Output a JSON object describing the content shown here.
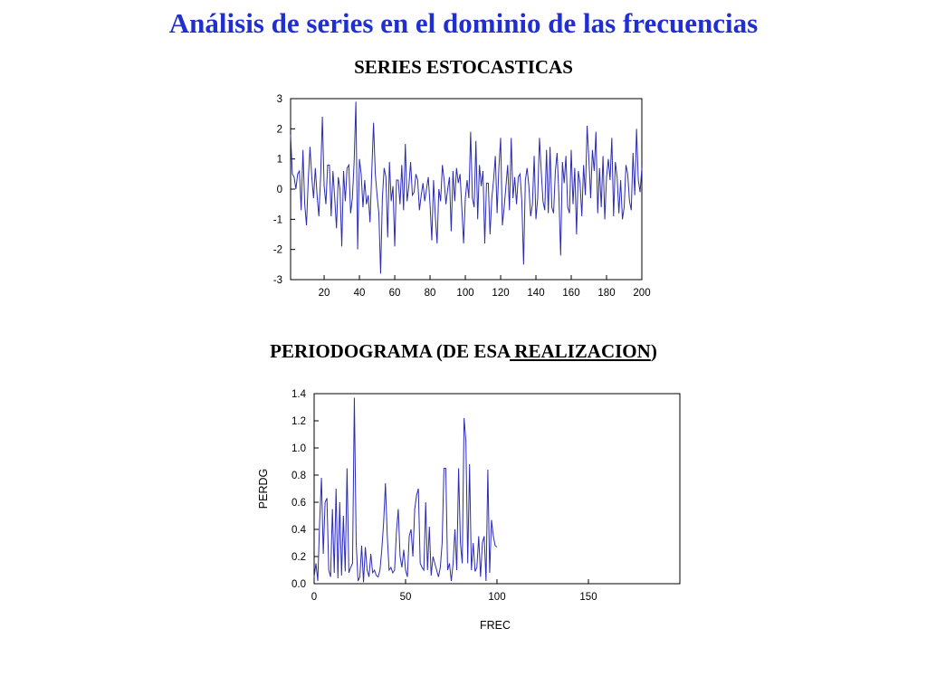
{
  "header": {
    "title": "Análisis de series en el dominio de las frecuencias",
    "series_title": "SERIES ESTOCASTICAS",
    "periodogram_title_prefix": "PERIODOGRAMA (DE ESA",
    "periodogram_title_underlined": " REALIZACION",
    "periodogram_title_suffix": ")"
  },
  "colors": {
    "title": "#1f2fd0",
    "series_line": "#2b2bb5",
    "axes": "#000000"
  },
  "chart_data": [
    {
      "type": "line",
      "xlim": [
        1,
        200
      ],
      "ylim": [
        -3,
        3
      ],
      "x_ticks": [
        20,
        40,
        60,
        80,
        100,
        120,
        140,
        160,
        180,
        200
      ],
      "y_ticks": [
        -3,
        -2,
        -1,
        0,
        1,
        2,
        3
      ],
      "xlabel": "",
      "ylabel": "",
      "grid": false,
      "values": [
        1.8,
        0.5,
        0.4,
        0.0,
        0.5,
        0.6,
        -0.7,
        1.3,
        -0.5,
        -1.2,
        0.3,
        1.4,
        0.4,
        -0.3,
        0.7,
        -0.2,
        -0.9,
        0.4,
        2.4,
        0.1,
        -0.5,
        0.8,
        0.8,
        -0.9,
        0.6,
        -0.3,
        -1.3,
        0.4,
        0.0,
        -1.9,
        0.6,
        -0.4,
        0.7,
        0.8,
        -0.8,
        -0.3,
        0.9,
        2.9,
        -2.0,
        1.0,
        0.5,
        -0.6,
        0.3,
        -0.5,
        -0.2,
        -1.1,
        0.6,
        2.2,
        0.5,
        -0.2,
        -0.8,
        -2.8,
        -0.3,
        0.7,
        0.4,
        -1.6,
        0.9,
        -0.4,
        0.1,
        -1.9,
        0.3,
        0.3,
        -0.5,
        0.8,
        -0.7,
        1.5,
        -0.4,
        0.1,
        0.9,
        -0.2,
        -0.1,
        0.5,
        0.3,
        -0.7,
        -0.2,
        0.2,
        -0.4,
        0.0,
        0.4,
        -0.5,
        -1.7,
        0.3,
        -0.9,
        -1.8,
        0.0,
        -0.4,
        0.8,
        0.3,
        -0.5,
        0.0,
        0.4,
        -1.4,
        0.6,
        -0.4,
        0.7,
        0.2,
        0.5,
        -0.6,
        -1.8,
        -0.3,
        0.3,
        -0.3,
        1.9,
        -0.3,
        -0.6,
        1.6,
        -1.0,
        0.8,
        0.1,
        0.6,
        -1.8,
        0.2,
        0.2,
        -1.5,
        -0.3,
        0.3,
        1.1,
        -0.8,
        0.7,
        1.7,
        -1.2,
        -0.6,
        0.1,
        0.8,
        -0.7,
        1.7,
        -0.3,
        0.4,
        -0.5,
        0.4,
        0.5,
        -0.4,
        -2.5,
        0.3,
        0.7,
        0.1,
        -0.9,
        -0.5,
        1.1,
        -1.0,
        -0.3,
        1.7,
        0.6,
        -0.4,
        -0.7,
        1.3,
        -0.8,
        1.4,
        -0.6,
        -0.8,
        0.6,
        1.2,
        -0.2,
        -2.2,
        0.9,
        0.2,
        1.1,
        -0.6,
        -0.8,
        1.3,
        -0.5,
        0.7,
        -1.5,
        0.6,
        0.2,
        -0.9,
        0.8,
        -0.2,
        2.1,
        1.0,
        -0.3,
        1.3,
        0.6,
        1.9,
        -0.8,
        0.7,
        -0.6,
        1.1,
        -1.0,
        0.4,
        1.0,
        0.3,
        1.7,
        -0.9,
        0.9,
        0.4,
        -0.8,
        0.3,
        -1.0,
        -0.6,
        0.8,
        0.5,
        -0.4,
        -0.7,
        1.2,
        -0.2,
        2.0,
        0.3,
        -0.1,
        0.7
      ]
    },
    {
      "type": "line",
      "xlabel": "FREC",
      "ylabel": "PERDG",
      "xlim": [
        0,
        200
      ],
      "ylim": [
        0,
        1.4
      ],
      "x_ticks": [
        0,
        50,
        100,
        150
      ],
      "y_ticks": [
        "0.0",
        "0.2",
        "0.4",
        "0.6",
        "0.8",
        "1.0",
        "1.2",
        "1.4"
      ],
      "grid": false,
      "values": [
        0.05,
        0.15,
        0.02,
        0.45,
        0.78,
        0.22,
        0.6,
        0.63,
        0.1,
        0.05,
        0.55,
        0.08,
        0.7,
        0.04,
        0.6,
        0.06,
        0.5,
        0.09,
        0.85,
        0.08,
        0.12,
        0.15,
        1.37,
        0.3,
        0.02,
        0.05,
        0.28,
        0.01,
        0.27,
        0.1,
        0.05,
        0.22,
        0.08,
        0.1,
        0.06,
        0.05,
        0.1,
        0.25,
        0.45,
        0.74,
        0.35,
        0.1,
        0.12,
        0.08,
        0.1,
        0.38,
        0.55,
        0.2,
        0.12,
        0.25,
        0.1,
        0.05,
        0.35,
        0.4,
        0.2,
        0.55,
        0.65,
        0.7,
        0.15,
        0.12,
        0.1,
        0.6,
        0.1,
        0.42,
        0.06,
        0.2,
        0.15,
        0.1,
        0.05,
        0.12,
        0.3,
        0.85,
        0.85,
        0.1,
        0.15,
        0.02,
        0.15,
        0.4,
        0.1,
        0.85,
        0.3,
        0.15,
        1.22,
        1.05,
        0.15,
        0.88,
        0.1,
        0.3,
        0.09,
        0.12,
        0.35,
        0.05,
        0.3,
        0.35,
        0.02,
        0.84,
        0.08,
        0.47,
        0.35,
        0.28,
        0.27
      ]
    }
  ]
}
